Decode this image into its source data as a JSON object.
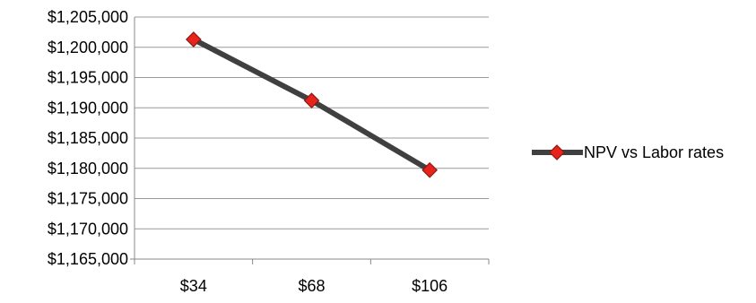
{
  "chart_data": {
    "type": "line",
    "title": "",
    "xlabel": "",
    "ylabel": "",
    "categories": [
      "$34",
      "$68",
      "$106"
    ],
    "y_tick_labels": [
      "$1,165,000",
      "$1,170,000",
      "$1,175,000",
      "$1,180,000",
      "$1,185,000",
      "$1,190,000",
      "$1,195,000",
      "$1,200,000",
      "$1,205,000"
    ],
    "ylim": [
      1165000,
      1205000
    ],
    "ytick_step": 5000,
    "grid": true,
    "legend_position": "right",
    "series": [
      {
        "name": "NPV vs Labor rates",
        "values": [
          1201300,
          1191200,
          1179700
        ],
        "line_color": "#404040",
        "marker": "diamond",
        "marker_color": "#e8231c",
        "marker_edge_color": "#8b1a14"
      }
    ],
    "colors": {
      "grid": "#999999",
      "axis": "#888888",
      "text": "#000000"
    }
  }
}
